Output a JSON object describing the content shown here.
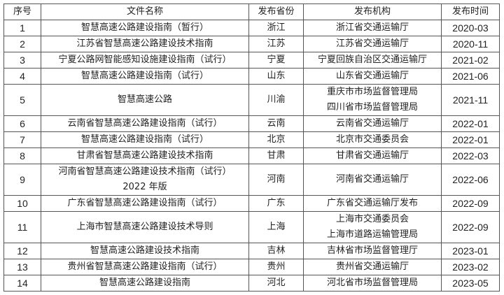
{
  "table": {
    "headers": [
      "序号",
      "文件名称",
      "发布省份",
      "发布机构",
      "发布时间"
    ],
    "rows": [
      {
        "no": "1",
        "name": [
          "智慧高速公路建设指南（暂行）"
        ],
        "province": "浙江",
        "org": [
          "浙江省交通运输厅"
        ],
        "date": "2020-03"
      },
      {
        "no": "2",
        "name": [
          "江苏省智慧高速公路建设技术指南"
        ],
        "province": "江苏",
        "org": [
          "江苏省交通运输厅"
        ],
        "date": "2020-11"
      },
      {
        "no": "3",
        "name": [
          "宁夏公路网智能感知设施建设指南（试行）"
        ],
        "province": "宁夏",
        "org": [
          "宁夏回族自治区交通运输厅"
        ],
        "date": "2021-02"
      },
      {
        "no": "4",
        "name": [
          "智慧高速公路建设指南（试行）"
        ],
        "province": "山东",
        "org": [
          "山东省交通运输厅"
        ],
        "date": "2021-06"
      },
      {
        "no": "5",
        "name": [
          "智慧高速公路"
        ],
        "province": "川渝",
        "org": [
          "重庆市市场监督管理局",
          "四川省市场监督管理局"
        ],
        "date": "2021-11"
      },
      {
        "no": "6",
        "name": [
          "云南省智慧高速公路建设指南（试行）"
        ],
        "province": "云南",
        "org": [
          "云南省交通运输厅"
        ],
        "date": "2022-01"
      },
      {
        "no": "7",
        "name": [
          "智慧高速公路建设指南（试行）"
        ],
        "province": "北京",
        "org": [
          "北京市交通委员会"
        ],
        "date": "2022-01"
      },
      {
        "no": "8",
        "name": [
          "甘肃省智慧高速公路建设技术指南"
        ],
        "province": "甘肃",
        "org": [
          "甘肃省交通运输厅"
        ],
        "date": "2022-03"
      },
      {
        "no": "9",
        "name": [
          "河南省智慧高速公路建设技术指南（试行）",
          "2022 年版"
        ],
        "province": "河南",
        "org": [
          "河南省交通运输厅"
        ],
        "date": "2022-06"
      },
      {
        "no": "10",
        "name": [
          "广东省智慧高速公路建设指南（试行）"
        ],
        "province": "广东",
        "org": [
          "广东省交通运输厅发布"
        ],
        "date": "2022-09"
      },
      {
        "no": "11",
        "name": [
          "上海市智慧高速公路建设技术导则"
        ],
        "province": "上海",
        "org": [
          "上海市交通委员会",
          "上海市道路运输管理局"
        ],
        "date": "2022-09"
      },
      {
        "no": "12",
        "name": [
          "智慧高速公路建设技术指南"
        ],
        "province": "吉林",
        "org": [
          "吉林省市场监督管理厅"
        ],
        "date": "2023-01"
      },
      {
        "no": "13",
        "name": [
          "贵州省智慧高速公路建设指南（试行）"
        ],
        "province": "贵州",
        "org": [
          "贵州省交通运输厅"
        ],
        "date": "2023-02"
      },
      {
        "no": "14",
        "name": [
          "智慧高速公路建设指南"
        ],
        "province": "河北",
        "org": [
          "河北省市场监督管理局"
        ],
        "date": "2023-05"
      }
    ]
  }
}
